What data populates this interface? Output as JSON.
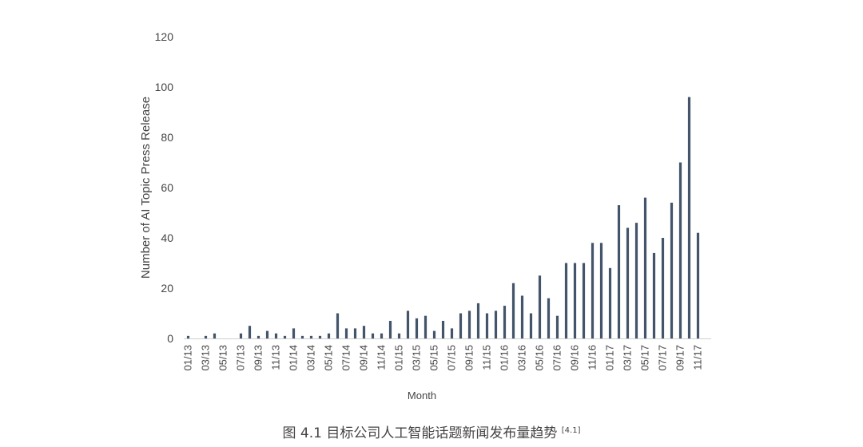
{
  "chart_data": {
    "type": "bar",
    "title": "",
    "xlabel": "Month",
    "ylabel": "Number of AI Topic Press Release",
    "ylim": [
      0,
      120
    ],
    "yticks": [
      0,
      20,
      40,
      60,
      80,
      100,
      120
    ],
    "grid": false,
    "bar_color": "#44546a",
    "categories": [
      "01/13",
      "02/13",
      "03/13",
      "04/13",
      "05/13",
      "06/13",
      "07/13",
      "08/13",
      "09/13",
      "10/13",
      "11/13",
      "12/13",
      "01/14",
      "02/14",
      "03/14",
      "04/14",
      "05/14",
      "06/14",
      "07/14",
      "08/14",
      "09/14",
      "10/14",
      "11/14",
      "12/14",
      "01/15",
      "02/15",
      "03/15",
      "04/15",
      "05/15",
      "06/15",
      "07/15",
      "08/15",
      "09/15",
      "10/15",
      "11/15",
      "12/15",
      "01/16",
      "02/16",
      "03/16",
      "04/16",
      "05/16",
      "06/16",
      "07/16",
      "08/16",
      "09/16",
      "10/16",
      "11/16",
      "12/16",
      "01/17",
      "02/17",
      "03/17",
      "04/17",
      "05/17",
      "06/17",
      "07/17",
      "08/17",
      "09/17",
      "10/17",
      "11/17",
      "12/17"
    ],
    "tick_labels": [
      "01/13",
      "03/13",
      "05/13",
      "07/13",
      "09/13",
      "11/13",
      "01/14",
      "03/14",
      "05/14",
      "07/14",
      "09/14",
      "11/14",
      "01/15",
      "03/15",
      "05/15",
      "07/15",
      "09/15",
      "11/15",
      "01/16",
      "03/16",
      "05/16",
      "07/16",
      "09/16",
      "11/16",
      "01/17",
      "03/17",
      "05/17",
      "07/17",
      "09/17",
      "11/17"
    ],
    "values": [
      1,
      0,
      1,
      2,
      0,
      0,
      2,
      5,
      1,
      3,
      2,
      1,
      4,
      1,
      1,
      1,
      2,
      10,
      4,
      4,
      5,
      2,
      2,
      7,
      2,
      11,
      8,
      9,
      3,
      7,
      4,
      10,
      11,
      14,
      10,
      11,
      13,
      22,
      17,
      10,
      25,
      16,
      9,
      30,
      30,
      30,
      38,
      38,
      28,
      53,
      44,
      46,
      56,
      34,
      40,
      54,
      70,
      96,
      42,
      0
    ]
  },
  "caption": {
    "text": "图 4.1 目标公司人工智能话题新闻发布量趋势",
    "ref": "[4.1]"
  }
}
